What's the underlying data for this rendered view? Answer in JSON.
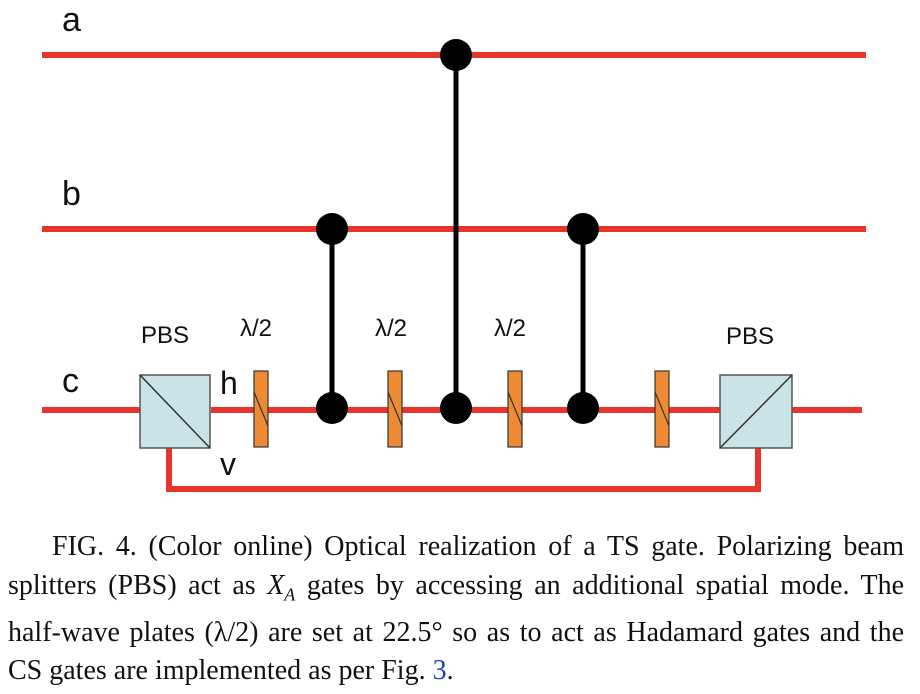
{
  "diagram": {
    "rails": [
      {
        "label": "a"
      },
      {
        "label": "b"
      },
      {
        "label": "c"
      }
    ],
    "pbs_left_label": "PBS",
    "pbs_right_label": "PBS",
    "h_label": "h",
    "v_label": "v",
    "plate_labels": [
      "λ/2",
      "λ/2",
      "λ/2"
    ],
    "colors": {
      "beam": "#e8352b",
      "gate": "#000000",
      "pbs_fill": "#c9e3e6",
      "plate_fill": "#ee8a33"
    }
  },
  "caption": {
    "part1": "FIG. 4. (Color online) Optical realization of a TS gate. Polarizing beam splitters (PBS) act as ",
    "xa_base": "X",
    "xa_sub": "A",
    "part2": " gates by accessing an additional spatial mode. The half-wave plates (λ/2) are set at 22.5° so as to act as Hadamard gates and the CS gates are implemented as per Fig. ",
    "fig_ref": "3",
    "part3": "."
  }
}
